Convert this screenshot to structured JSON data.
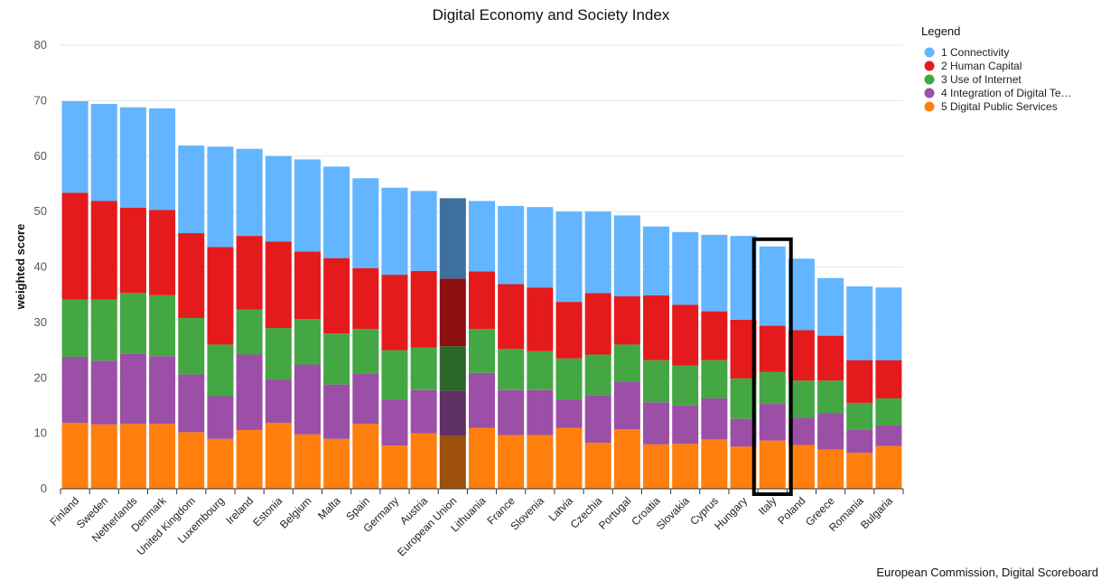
{
  "chart_data": {
    "type": "bar",
    "stacked": true,
    "title": "Digital Economy and Society Index",
    "ylabel": "weighted score",
    "xlabel": "",
    "ylim": [
      0,
      80
    ],
    "yticks": [
      0,
      10,
      20,
      30,
      40,
      50,
      60,
      70,
      80
    ],
    "grid": true,
    "legend_title": "Legend",
    "legend_position": "top-right",
    "highlighted_category": "Italy",
    "darkened_category": "European Union",
    "credit": "European Commission, Digital Scoreboard",
    "categories": [
      "Finland",
      "Sweden",
      "Netherlands",
      "Denmark",
      "United Kingdom",
      "Luxembourg",
      "Ireland",
      "Estonia",
      "Belgium",
      "Malta",
      "Spain",
      "Germany",
      "Austria",
      "European Union",
      "Lithuania",
      "France",
      "Slovenia",
      "Latvia",
      "Czechia",
      "Portugal",
      "Croatia",
      "Slovakia",
      "Cyprus",
      "Hungary",
      "Italy",
      "Poland",
      "Greece",
      "Romania",
      "Bulgaria"
    ],
    "series": [
      {
        "name": "5 Digital Public Services",
        "color": "#ff7f0e",
        "values": [
          11.9,
          11.6,
          11.7,
          11.7,
          10.2,
          9.0,
          10.6,
          11.9,
          9.8,
          9.0,
          11.7,
          7.8,
          10.0,
          9.5,
          11.0,
          9.7,
          9.7,
          11.0,
          8.3,
          10.7,
          8.0,
          8.1,
          8.9,
          7.6,
          8.7,
          7.9,
          7.1,
          6.5,
          7.7
        ]
      },
      {
        "name": "4 Integration of Digital Te…",
        "color": "#9b4fa6",
        "values": [
          11.9,
          11.5,
          12.7,
          12.2,
          10.4,
          7.7,
          13.6,
          7.8,
          12.6,
          9.8,
          9.0,
          8.3,
          7.8,
          8.2,
          9.9,
          8.1,
          8.1,
          5.1,
          8.6,
          8.6,
          7.6,
          6.9,
          7.4,
          5.0,
          6.6,
          4.9,
          6.5,
          4.1,
          3.7
        ]
      },
      {
        "name": "3 Use of Internet",
        "color": "#44a744",
        "values": [
          10.3,
          11.0,
          10.9,
          11.0,
          10.2,
          9.3,
          8.1,
          9.3,
          8.2,
          9.2,
          8.1,
          8.9,
          7.7,
          8.0,
          7.9,
          7.4,
          7.0,
          7.4,
          7.3,
          6.7,
          7.6,
          7.2,
          6.9,
          7.3,
          5.8,
          6.7,
          5.9,
          4.9,
          4.9
        ]
      },
      {
        "name": "2 Human Capital",
        "color": "#e41a1c",
        "values": [
          19.3,
          17.8,
          15.4,
          15.4,
          15.3,
          17.6,
          13.3,
          15.6,
          12.2,
          13.6,
          11.0,
          13.6,
          13.8,
          12.2,
          10.4,
          11.7,
          11.5,
          10.2,
          11.1,
          8.7,
          11.7,
          11.0,
          8.8,
          10.6,
          8.3,
          9.1,
          8.1,
          7.7,
          6.9
        ]
      },
      {
        "name": "1 Connectivity",
        "color": "#63b5ff",
        "values": [
          16.5,
          17.5,
          18.1,
          18.3,
          15.8,
          18.1,
          15.7,
          15.4,
          16.6,
          16.5,
          16.2,
          15.7,
          14.4,
          14.5,
          12.7,
          14.1,
          14.5,
          16.3,
          14.7,
          14.6,
          12.4,
          13.1,
          13.8,
          15.1,
          14.3,
          12.9,
          10.4,
          13.3,
          13.1
        ]
      }
    ]
  }
}
